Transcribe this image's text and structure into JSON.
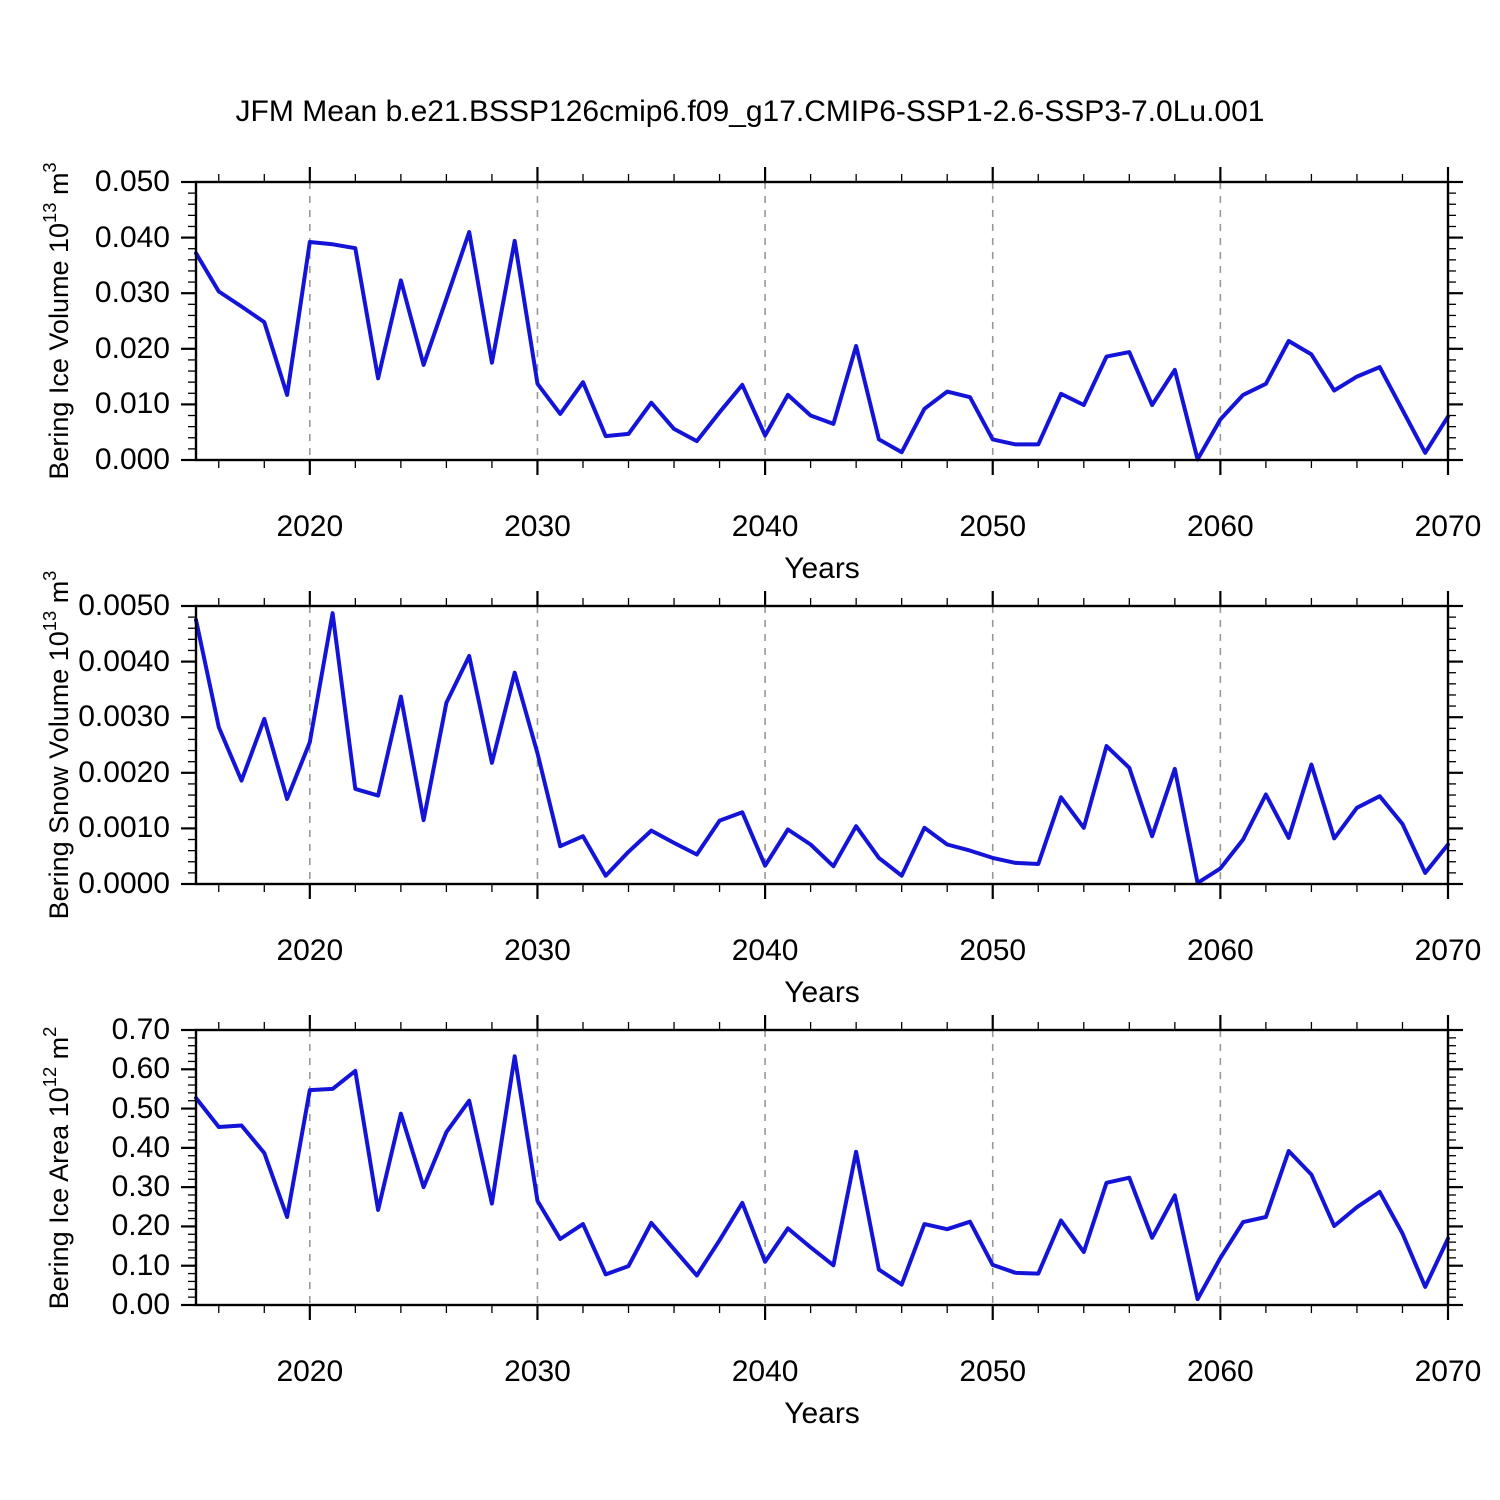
{
  "title": "JFM Mean b.e21.BSSP126cmip6.f09_g17.CMIP6-SSP1-2.6-SSP3-7.0Lu.001",
  "styles": {
    "line_color": "#1414d8",
    "grid_color": "#989898",
    "axis_color": "#000000",
    "background": "#ffffff"
  },
  "years": [
    2015,
    2016,
    2017,
    2018,
    2019,
    2020,
    2021,
    2022,
    2023,
    2024,
    2025,
    2026,
    2027,
    2028,
    2029,
    2030,
    2031,
    2032,
    2033,
    2034,
    2035,
    2036,
    2037,
    2038,
    2039,
    2040,
    2041,
    2042,
    2043,
    2044,
    2045,
    2046,
    2047,
    2048,
    2049,
    2050,
    2051,
    2052,
    2053,
    2054,
    2055,
    2056,
    2057,
    2058,
    2059,
    2060,
    2061,
    2062,
    2063,
    2064,
    2065,
    2066,
    2067,
    2068,
    2069,
    2070
  ],
  "chart_data": [
    {
      "id": "bering-ice-volume",
      "type": "line",
      "title": "",
      "xlabel": "Years",
      "ylabel_parts": [
        {
          "t": "Bering Ice Volume 10"
        },
        {
          "t": "13",
          "sup": true
        },
        {
          "t": " m"
        },
        {
          "t": "3",
          "sup": true
        }
      ],
      "xlim": [
        2015,
        2070
      ],
      "xticks": [
        2020,
        2030,
        2040,
        2050,
        2060,
        2070
      ],
      "xtick_labels": [
        "2020",
        "2030",
        "2040",
        "2050",
        "2060",
        "2070"
      ],
      "x_minor_step": 2,
      "grid_x_dashed": [
        2020,
        2030,
        2040,
        2050,
        2060
      ],
      "ylim": [
        0.0,
        0.05
      ],
      "yticks": [
        0.0,
        0.01,
        0.02,
        0.03,
        0.04,
        0.05
      ],
      "ytick_labels": [
        "0.000",
        "0.010",
        "0.020",
        "0.030",
        "0.040",
        "0.050"
      ],
      "y_minor_step": 0.002,
      "grid": "x-dashed-only",
      "legend": "none",
      "series": [
        {
          "name": "JFM mean Bering ice volume",
          "values": [
            0.0372,
            0.0303,
            0.0276,
            0.0248,
            0.0117,
            0.0392,
            0.0388,
            0.0381,
            0.0147,
            0.0323,
            0.0171,
            0.029,
            0.041,
            0.0175,
            0.0394,
            0.0137,
            0.0083,
            0.014,
            0.0043,
            0.0047,
            0.0103,
            0.0056,
            0.0034,
            0.0086,
            0.0135,
            0.0044,
            0.0117,
            0.008,
            0.0065,
            0.0205,
            0.0037,
            0.0014,
            0.0092,
            0.0123,
            0.0113,
            0.0037,
            0.0028,
            0.0028,
            0.0119,
            0.0099,
            0.0186,
            0.0194,
            0.0099,
            0.0162,
            0.0001,
            0.0073,
            0.0117,
            0.0137,
            0.0214,
            0.019,
            0.0125,
            0.015,
            0.0167,
            0.009,
            0.0013,
            0.0078
          ]
        }
      ]
    },
    {
      "id": "bering-snow-volume",
      "type": "line",
      "title": "",
      "xlabel": "Years",
      "ylabel_parts": [
        {
          "t": "Bering Snow Volume 10"
        },
        {
          "t": "13",
          "sup": true
        },
        {
          "t": " m"
        },
        {
          "t": "3",
          "sup": true
        }
      ],
      "xlim": [
        2015,
        2070
      ],
      "xticks": [
        2020,
        2030,
        2040,
        2050,
        2060,
        2070
      ],
      "xtick_labels": [
        "2020",
        "2030",
        "2040",
        "2050",
        "2060",
        "2070"
      ],
      "x_minor_step": 2,
      "grid_x_dashed": [
        2020,
        2030,
        2040,
        2050,
        2060
      ],
      "ylim": [
        0.0,
        0.005
      ],
      "yticks": [
        0.0,
        0.001,
        0.002,
        0.003,
        0.004,
        0.005
      ],
      "ytick_labels": [
        "0.0000",
        "0.0010",
        "0.0020",
        "0.0030",
        "0.0040",
        "0.0050"
      ],
      "y_minor_step": 0.0002,
      "grid": "x-dashed-only",
      "legend": "none",
      "series": [
        {
          "name": "JFM mean Bering snow volume",
          "values": [
            0.00475,
            0.00282,
            0.00186,
            0.00297,
            0.00153,
            0.00255,
            0.00487,
            0.00171,
            0.00159,
            0.00337,
            0.00115,
            0.00326,
            0.0041,
            0.00218,
            0.0038,
            0.00235,
            0.00068,
            0.00086,
            0.00015,
            0.00058,
            0.00096,
            0.00074,
            0.00053,
            0.00114,
            0.00129,
            0.00033,
            0.00098,
            0.00071,
            0.00032,
            0.00104,
            0.00047,
            0.00015,
            0.00101,
            0.00071,
            0.0006,
            0.00047,
            0.00038,
            0.00036,
            0.00156,
            0.00101,
            0.00248,
            0.00209,
            0.00086,
            0.00207,
            2e-05,
            0.00028,
            0.0008,
            0.00161,
            0.00083,
            0.00215,
            0.00082,
            0.00137,
            0.00158,
            0.00108,
            0.0002,
            0.00071
          ]
        }
      ]
    },
    {
      "id": "bering-ice-area",
      "type": "line",
      "title": "",
      "xlabel": "Years",
      "ylabel_parts": [
        {
          "t": "Bering Ice Area 10"
        },
        {
          "t": "12",
          "sup": true
        },
        {
          "t": " m"
        },
        {
          "t": "2",
          "sup": true
        }
      ],
      "xlim": [
        2015,
        2070
      ],
      "xticks": [
        2020,
        2030,
        2040,
        2050,
        2060,
        2070
      ],
      "xtick_labels": [
        "2020",
        "2030",
        "2040",
        "2050",
        "2060",
        "2070"
      ],
      "x_minor_step": 2,
      "grid_x_dashed": [
        2020,
        2030,
        2040,
        2050,
        2060
      ],
      "ylim": [
        0.0,
        0.7
      ],
      "yticks": [
        0.0,
        0.1,
        0.2,
        0.3,
        0.4,
        0.5,
        0.6,
        0.7
      ],
      "ytick_labels": [
        "0.00",
        "0.10",
        "0.20",
        "0.30",
        "0.40",
        "0.50",
        "0.60",
        "0.70"
      ],
      "y_minor_step": 0.02,
      "grid": "x-dashed-only",
      "legend": "none",
      "series": [
        {
          "name": "JFM mean Bering ice area",
          "values": [
            0.527,
            0.453,
            0.457,
            0.387,
            0.224,
            0.547,
            0.55,
            0.596,
            0.242,
            0.487,
            0.3,
            0.44,
            0.52,
            0.258,
            0.633,
            0.265,
            0.168,
            0.206,
            0.078,
            0.099,
            0.209,
            0.142,
            0.075,
            0.165,
            0.26,
            0.11,
            0.195,
            0.147,
            0.101,
            0.39,
            0.09,
            0.052,
            0.206,
            0.193,
            0.212,
            0.102,
            0.082,
            0.08,
            0.215,
            0.135,
            0.311,
            0.324,
            0.171,
            0.279,
            0.015,
            0.12,
            0.211,
            0.224,
            0.392,
            0.332,
            0.201,
            0.249,
            0.288,
            0.182,
            0.046,
            0.169
          ]
        }
      ]
    }
  ]
}
